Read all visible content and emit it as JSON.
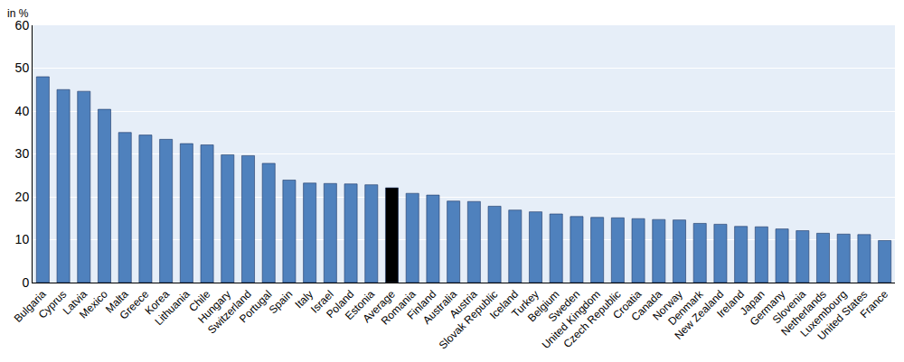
{
  "chart_data": {
    "type": "bar",
    "y_label": "in %",
    "categories": [
      "Bulgaria",
      "Cyprus",
      "Latvia",
      "Mexico",
      "Malta",
      "Greece",
      "Korea",
      "Lithuania",
      "Chile",
      "Hungary",
      "Switzerland",
      "Portugal",
      "Spain",
      "Italy",
      "Israel",
      "Poland",
      "Estonia",
      "Average",
      "Romania",
      "Finland",
      "Australia",
      "Austria",
      "Slovak Republic",
      "Iceland",
      "Turkey",
      "Belgium",
      "Sweden",
      "United Kingdom",
      "Czech Republic",
      "Croatia",
      "Canada",
      "Norway",
      "Denmark",
      "New Zealand",
      "Ireland",
      "Japan",
      "Germany",
      "Slovenia",
      "Netherlands",
      "Luxembourg",
      "United States",
      "France"
    ],
    "values": [
      48.0,
      45.0,
      44.6,
      40.4,
      35.0,
      34.4,
      33.4,
      32.4,
      32.1,
      29.8,
      29.6,
      27.8,
      23.9,
      23.2,
      23.1,
      23.0,
      22.8,
      22.1,
      20.8,
      20.4,
      19.0,
      18.9,
      17.8,
      16.9,
      16.5,
      16.0,
      15.4,
      15.2,
      15.1,
      14.9,
      14.7,
      14.6,
      13.8,
      13.6,
      13.1,
      13.0,
      12.5,
      12.1,
      11.5,
      11.3,
      11.2,
      9.8
    ],
    "colors": [
      "#4f81bd",
      "#4f81bd",
      "#4f81bd",
      "#4f81bd",
      "#4f81bd",
      "#4f81bd",
      "#4f81bd",
      "#4f81bd",
      "#4f81bd",
      "#4f81bd",
      "#4f81bd",
      "#4f81bd",
      "#4f81bd",
      "#4f81bd",
      "#4f81bd",
      "#4f81bd",
      "#4f81bd",
      "#000000",
      "#4f81bd",
      "#4f81bd",
      "#4f81bd",
      "#4f81bd",
      "#4f81bd",
      "#4f81bd",
      "#4f81bd",
      "#4f81bd",
      "#4f81bd",
      "#4f81bd",
      "#4f81bd",
      "#4f81bd",
      "#4f81bd",
      "#4f81bd",
      "#4f81bd",
      "#4f81bd",
      "#4f81bd",
      "#4f81bd",
      "#4f81bd",
      "#4f81bd",
      "#4f81bd",
      "#4f81bd",
      "#4f81bd",
      "#4f81bd"
    ],
    "ylim": [
      0,
      60
    ],
    "yticks": [
      0,
      10,
      20,
      30,
      40,
      50,
      60
    ],
    "grid": true
  }
}
